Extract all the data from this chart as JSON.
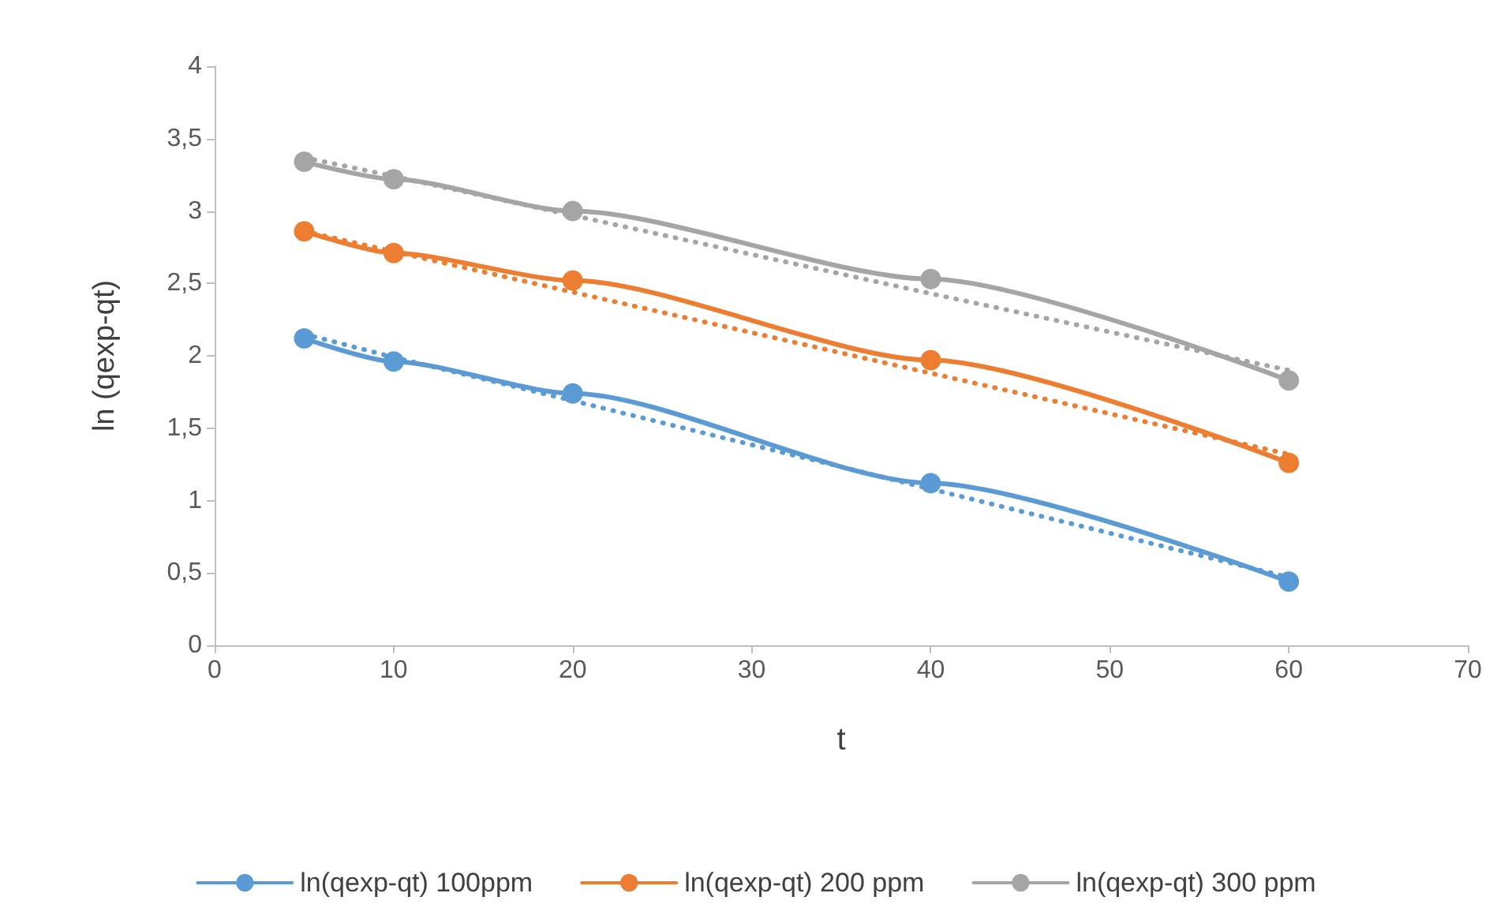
{
  "chart_data": {
    "type": "line",
    "xlabel": "t",
    "ylabel": "ln (qexp-qt)",
    "x": [
      5,
      10,
      20,
      40,
      60
    ],
    "xlim": [
      0,
      70
    ],
    "xticks": [
      0,
      10,
      20,
      30,
      40,
      50,
      60,
      70
    ],
    "ylim": [
      0,
      4
    ],
    "yticks": [
      0,
      {
        "value": 0.5,
        "label": "0,5"
      },
      1,
      {
        "value": 1.5,
        "label": "1,5"
      },
      2,
      {
        "value": 2.5,
        "label": "2,5"
      },
      3,
      {
        "value": 3.5,
        "label": "3,5"
      },
      4
    ],
    "grid": false,
    "legend": "bottom",
    "marker": "circle",
    "line_style": "solid",
    "series": [
      {
        "name": "ln(qexp-qt) 100ppm",
        "color": "#5b9bd5",
        "values": [
          2.12,
          1.96,
          1.74,
          1.12,
          0.44
        ]
      },
      {
        "name": "ln(qexp-qt) 200 ppm",
        "color": "#ed7d31",
        "values": [
          2.86,
          2.71,
          2.52,
          1.97,
          1.26
        ]
      },
      {
        "name": "ln(qexp-qt) 300 ppm",
        "color": "#a5a5a5",
        "values": [
          3.34,
          3.22,
          3.0,
          2.53,
          1.83
        ]
      },
      {
        "color": "#5b9bd5",
        "values": [
          2.15,
          1.99,
          1.69,
          1.08,
          0.47
        ],
        "marker": "none",
        "line_style": "dotted"
      },
      {
        "color": "#ed7d31",
        "values": [
          2.86,
          2.72,
          2.44,
          1.88,
          1.32
        ],
        "marker": "none",
        "line_style": "dotted"
      },
      {
        "color": "#a5a5a5",
        "values": [
          3.37,
          3.24,
          2.97,
          2.43,
          1.9
        ],
        "marker": "none",
        "line_style": "dotted"
      }
    ]
  }
}
